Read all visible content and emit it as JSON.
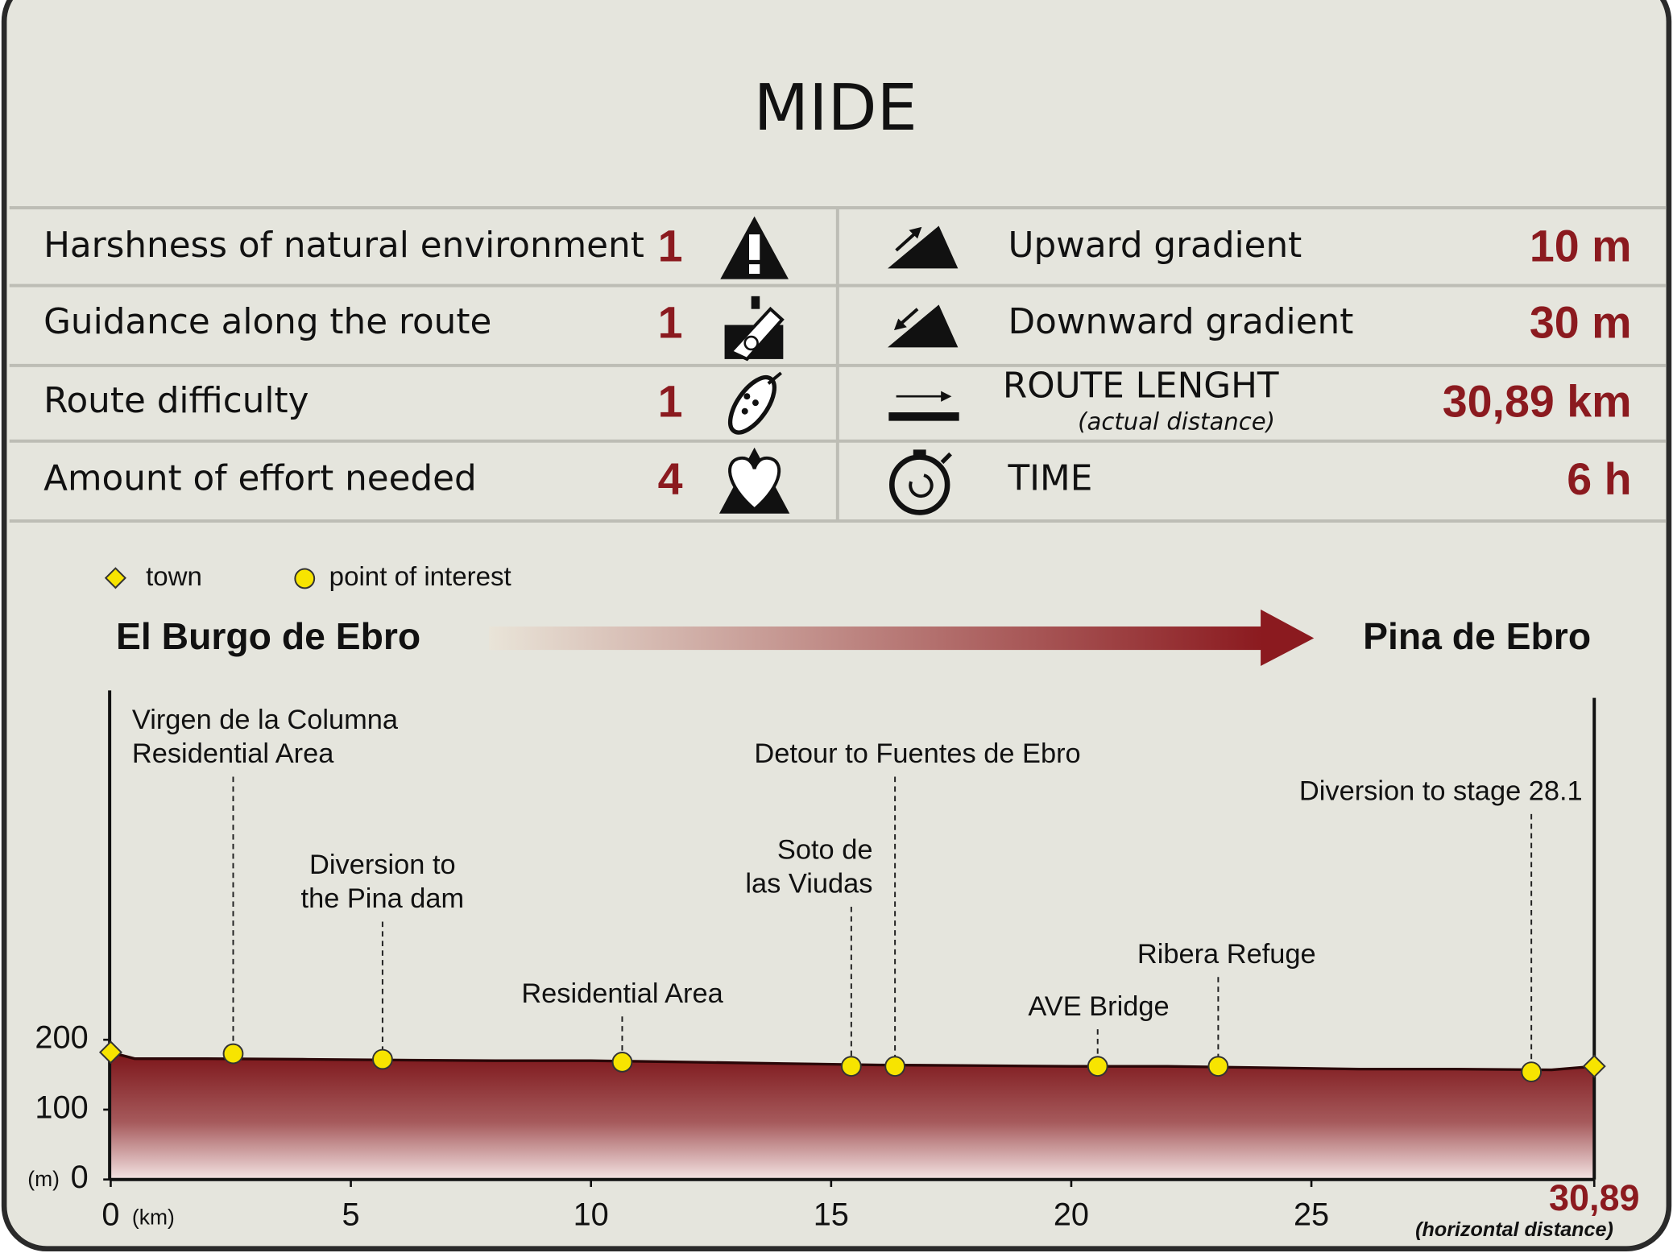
{
  "title": "MIDE",
  "mide": {
    "left": [
      {
        "label": "Harshness of natural environment",
        "value": 1
      },
      {
        "label": "Guidance along the route",
        "value": 1
      },
      {
        "label": "Route difficulty",
        "value": 1
      },
      {
        "label": "Amount of effort needed",
        "value": 4
      }
    ],
    "right": [
      {
        "label": "Upward gradient",
        "value": "10 m"
      },
      {
        "label": "Downward gradient",
        "value": "30 m"
      },
      {
        "label": "ROUTE LENGHT",
        "note": "(actual distance)",
        "value": "30,89 km"
      },
      {
        "label": "TIME",
        "value": "6 h"
      }
    ]
  },
  "chart_data": {
    "type": "area",
    "legend": {
      "town": "town",
      "poi": "point of interest"
    },
    "marker_color": "#f7e400",
    "start": "El Burgo de Ebro",
    "end": "Pina de Ebro",
    "color": "#8b1a1f",
    "x": [
      0,
      0.5,
      2,
      4,
      6,
      8,
      10,
      12,
      14,
      16,
      18,
      20,
      22,
      24,
      26,
      28,
      30,
      30.89
    ],
    "values": [
      182,
      173,
      173,
      172,
      171,
      170,
      170,
      168,
      166,
      164,
      163,
      162,
      162,
      160,
      158,
      158,
      157,
      162
    ],
    "xlim": [
      0,
      30.89
    ],
    "ylim": [
      0,
      700
    ],
    "xticks": [
      0,
      5,
      10,
      15,
      20,
      25,
      {
        "value": 30.89,
        "label": "30,89"
      }
    ],
    "yticks": [
      0,
      100,
      200
    ],
    "x_unit": "(km)",
    "y_unit": "(m)",
    "x_note": "(horizontal distance)",
    "towns": {
      "x": [
        0,
        30.89
      ],
      "values": [
        182,
        162
      ]
    },
    "points": [
      {
        "name": [
          "Virgen de la Columna",
          "Residential Area"
        ],
        "x": 2.55,
        "value": 180
      },
      {
        "name": [
          "Diversion to",
          "the Pina dam"
        ],
        "x": 5.66,
        "value": 172
      },
      {
        "name": [
          "Residential Area"
        ],
        "x": 10.65,
        "value": 168
      },
      {
        "name": [
          "Soto de",
          "las Viudas"
        ],
        "x": 15.42,
        "value": 162
      },
      {
        "name": [
          "Detour to Fuentes de Ebro"
        ],
        "x": 16.33,
        "value": 162
      },
      {
        "name": [
          "AVE Bridge"
        ],
        "x": 20.55,
        "value": 162
      },
      {
        "name": [
          "Ribera Refuge"
        ],
        "x": 23.06,
        "value": 162
      },
      {
        "name": [
          "Diversion to stage 28.1"
        ],
        "x": 29.58,
        "value": 154
      }
    ]
  }
}
